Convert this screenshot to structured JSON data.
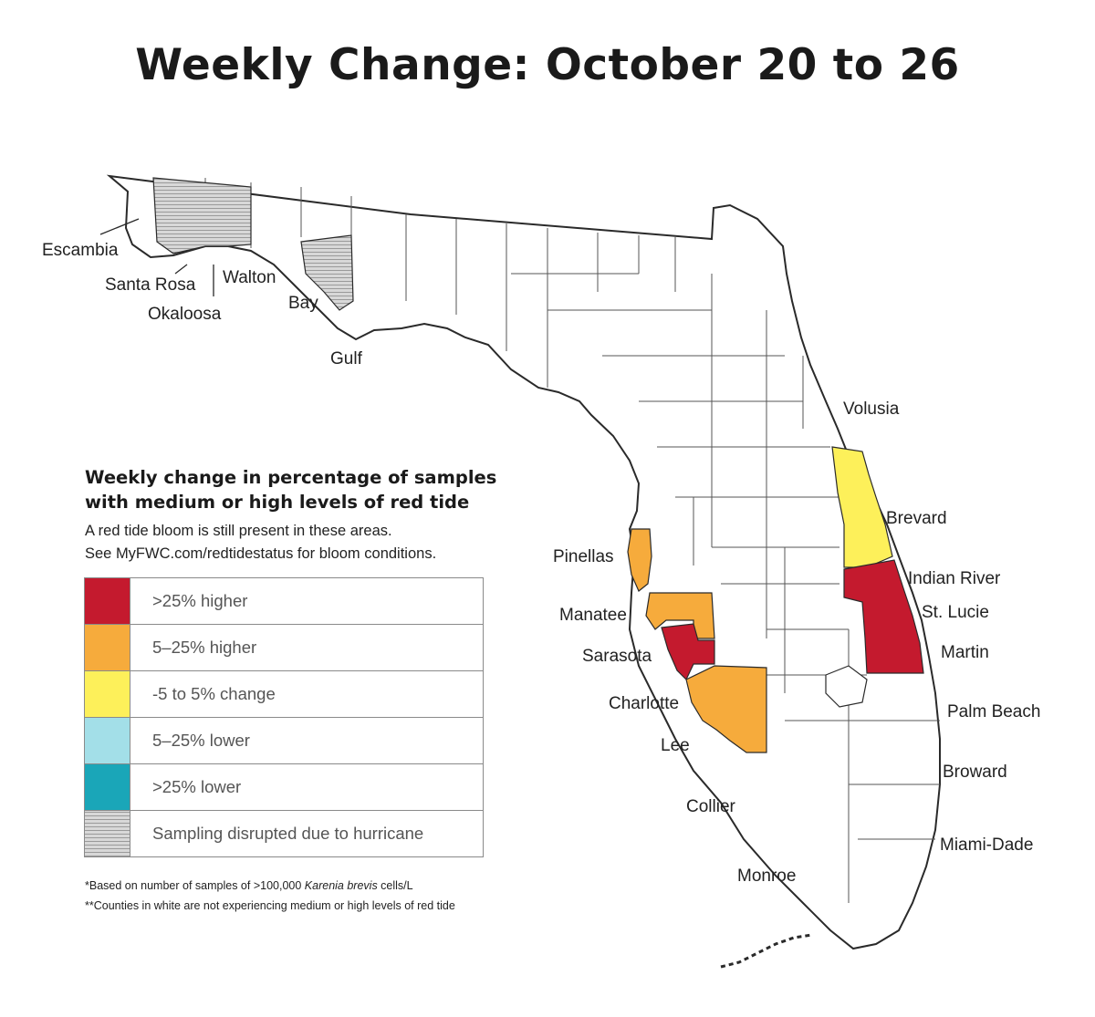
{
  "title": "Weekly Change: October 20 to 26",
  "colors": {
    "dark_red": "#c41a2e",
    "orange": "#f6ab3c",
    "yellow": "#fdf05a",
    "light_cyan": "#a3dfe8",
    "teal": "#1aa6b8",
    "gray": "#c9c9c9",
    "white": "#ffffff",
    "border": "#2a2a2a"
  },
  "counties": {
    "escambia": "Escambia",
    "santa_rosa": "Santa Rosa",
    "okaloosa": "Okaloosa",
    "walton": "Walton",
    "bay": "Bay",
    "gulf": "Gulf",
    "volusia": "Volusia",
    "brevard": "Brevard",
    "pinellas": "Pinellas",
    "indian_river": "Indian River",
    "manatee": "Manatee",
    "st_lucie": "St. Lucie",
    "sarasota": "Sarasota",
    "martin": "Martin",
    "charlotte": "Charlotte",
    "palm_beach": "Palm Beach",
    "lee": "Lee",
    "broward": "Broward",
    "collier": "Collier",
    "miami_dade": "Miami-Dade",
    "monroe": "Monroe"
  },
  "legend": {
    "title_line1": "Weekly change in percentage of samples",
    "title_line2": "with medium or high levels of red tide",
    "subtitle_line1": "A red tide bloom is still present in these areas.",
    "subtitle_line2": "See MyFWC.com/redtidestatus for bloom conditions.",
    "items": [
      {
        "label": ">25% higher",
        "color": "#c41a2e"
      },
      {
        "label": "5–25% higher",
        "color": "#f6ab3c"
      },
      {
        "label": "-5 to 5% change",
        "color": "#fdf05a"
      },
      {
        "label": "5–25% lower",
        "color": "#a3dfe8"
      },
      {
        "label": ">25% lower",
        "color": "#1aa6b8"
      },
      {
        "label": "Sampling disrupted due to hurricane",
        "color": "stripes"
      }
    ]
  },
  "footnotes": {
    "note1_prefix": "*Based on number of samples of >100,000 ",
    "note1_italic": "Karenia brevis",
    "note1_suffix": " cells/L",
    "note2": "**Counties in white are not experiencing medium or high levels of red tide"
  }
}
